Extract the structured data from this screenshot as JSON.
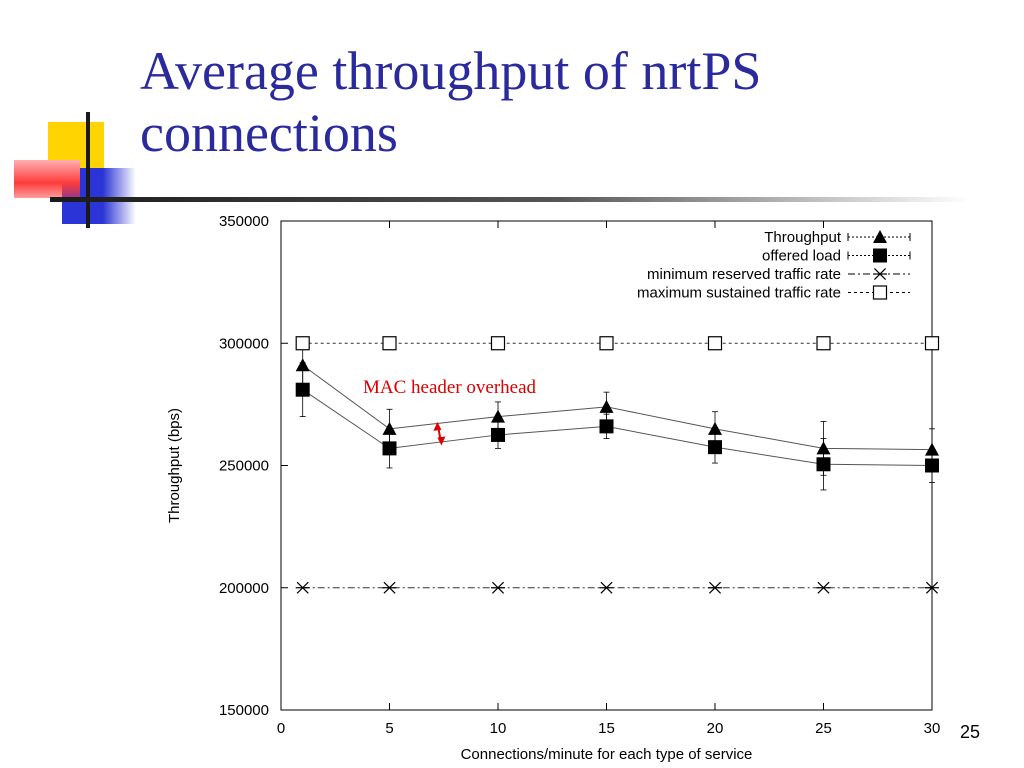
{
  "slide": {
    "title": "Average throughput of nrtPS connections",
    "number": "25"
  },
  "colors": {
    "title": "#2a2a9c",
    "annotation": "#dd0000",
    "deco_yellow": "#ffd400",
    "deco_blue": "#2b34d6",
    "deco_red": "#ff3b3b"
  },
  "chart_data": {
    "type": "line",
    "xlabel": "Connections/minute for each type of service",
    "ylabel": "Throughput (bps)",
    "xlim": [
      0,
      30
    ],
    "ylim": [
      150000,
      350000
    ],
    "xticks": [
      0,
      5,
      10,
      15,
      20,
      25,
      30
    ],
    "yticks": [
      150000,
      200000,
      250000,
      300000,
      350000
    ],
    "x": [
      1,
      5,
      10,
      15,
      20,
      25,
      30
    ],
    "grid": false,
    "legend_position": "top-right",
    "series": [
      {
        "name": "Throughput",
        "marker": "triangle",
        "line": "solid",
        "values": [
          291000,
          265000,
          270000,
          274000,
          265000,
          257000,
          256500
        ],
        "error": [
          [
            283000,
            299000
          ],
          [
            257000,
            273000
          ],
          [
            264000,
            276000
          ],
          [
            268000,
            280000
          ],
          [
            258000,
            272000
          ],
          [
            246000,
            268000
          ],
          [
            248000,
            265000
          ]
        ]
      },
      {
        "name": "offered load",
        "marker": "filled-square",
        "line": "solid",
        "values": [
          281000,
          257000,
          262500,
          266000,
          257500,
          250500,
          250000
        ],
        "error": [
          [
            270000,
            292000
          ],
          [
            249000,
            265000
          ],
          [
            257000,
            268000
          ],
          [
            261000,
            271000
          ],
          [
            251000,
            264000
          ],
          [
            240000,
            261000
          ],
          [
            243000,
            257000
          ]
        ]
      },
      {
        "name": "minimum reserved traffic rate",
        "marker": "asterisk",
        "line": "dash-dot",
        "values": [
          200000,
          200000,
          200000,
          200000,
          200000,
          200000,
          200000
        ]
      },
      {
        "name": "maximum sustained traffic rate",
        "marker": "open-square",
        "line": "dotted",
        "values": [
          300000,
          300000,
          300000,
          300000,
          300000,
          300000,
          300000
        ]
      }
    ],
    "annotations": [
      {
        "text": "MAC header overhead",
        "arrow_x": 7.3,
        "arrow_from": 267000,
        "arrow_to": 259000
      }
    ]
  }
}
